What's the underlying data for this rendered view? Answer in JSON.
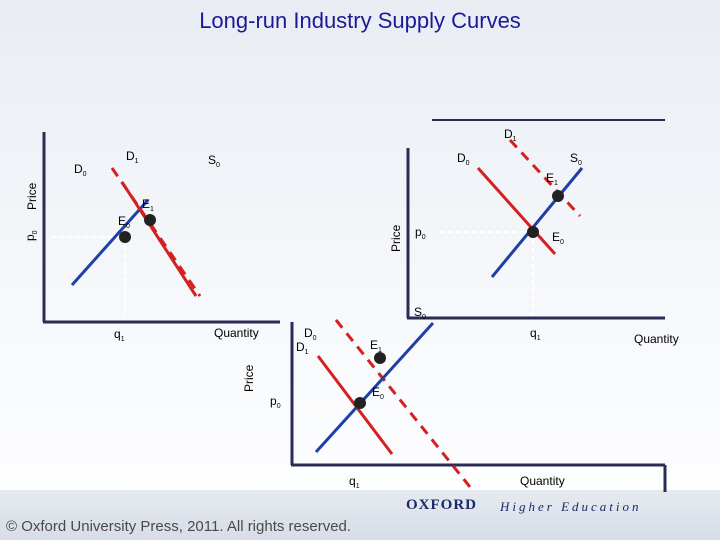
{
  "title": "Long-run Industry Supply Curves",
  "footer": {
    "copyright": "© Oxford University Press, 2011. All rights reserved.",
    "publisher": "OXFORD",
    "imprint": "Higher Education"
  },
  "colors": {
    "title": "#1a1a99",
    "demand": "#1f3fa8",
    "supply": "#d42020",
    "axis": "#2b2b55",
    "guide": "#ffffff",
    "point": "#222222"
  },
  "panels": [
    {
      "id": "left",
      "axes": {
        "y": "Price",
        "x": "Quantity"
      },
      "curves": {
        "d0": "D",
        "d1": "D",
        "s0": "S"
      },
      "points": {
        "e0": "E",
        "e1": "E"
      },
      "ticks": {
        "p0": "p",
        "q1": "q"
      },
      "sub": {
        "zero": "0",
        "one": "1"
      }
    },
    {
      "id": "right",
      "axes": {
        "y": "Price",
        "x": "Quantity"
      },
      "curves": {
        "d0": "D",
        "d1": "D",
        "s0": "S",
        "s1": "S"
      },
      "points": {
        "e0": "E",
        "e1": "E"
      },
      "ticks": {
        "p0": "p",
        "q1": "q"
      },
      "sub": {
        "zero": "0",
        "one": "1"
      }
    },
    {
      "id": "bottom",
      "axes": {
        "y": "Price",
        "x": "Quantity"
      },
      "curves": {
        "d0": "D",
        "d1": "D"
      },
      "points": {
        "e0": "E",
        "e1": "E"
      },
      "ticks": {
        "p0": "p",
        "q1": "q"
      },
      "sub": {
        "zero": "0",
        "one": "1"
      }
    }
  ]
}
